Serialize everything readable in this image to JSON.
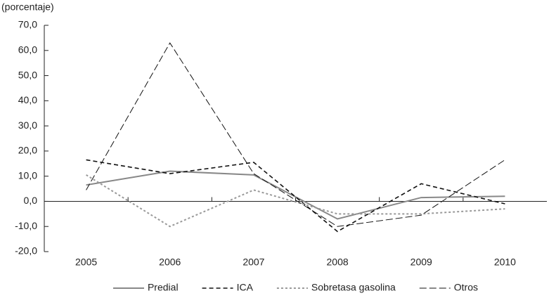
{
  "chart_data": {
    "type": "line",
    "y_label": "(porcentaje)",
    "categories": [
      "2005",
      "2006",
      "2007",
      "2008",
      "2009",
      "2010"
    ],
    "series": [
      {
        "name": "Predial",
        "color": "#888888",
        "width": 2,
        "dash": "none",
        "values": [
          6.5,
          12,
          10.5,
          -7,
          1.5,
          2
        ]
      },
      {
        "name": "ICA",
        "color": "#111111",
        "width": 1.6,
        "dash": "6,4",
        "values": [
          16.5,
          11,
          15.5,
          -12,
          7,
          -1
        ]
      },
      {
        "name": "Sobretasa gasolina",
        "color": "#999999",
        "width": 2,
        "dash": "3,3",
        "values": [
          10.5,
          -10,
          4.5,
          -5,
          -5,
          -3
        ]
      },
      {
        "name": "Otros",
        "color": "#111111",
        "width": 1,
        "dash": "10,4",
        "values": [
          4.5,
          63,
          11,
          -10,
          -5.5,
          16.5
        ]
      }
    ],
    "ylim": [
      -20,
      70
    ],
    "yticks": [
      {
        "value": -20,
        "label": "-20,0"
      },
      {
        "value": -10,
        "label": "-10,0"
      },
      {
        "value": 0,
        "label": "0,0"
      },
      {
        "value": 10,
        "label": "10,0"
      },
      {
        "value": 20,
        "label": "20,0"
      },
      {
        "value": 30,
        "label": "30,0"
      },
      {
        "value": 40,
        "label": "40,0"
      },
      {
        "value": 50,
        "label": "50,0"
      },
      {
        "value": 60,
        "label": "60,0"
      },
      {
        "value": 70,
        "label": "70,0"
      }
    ],
    "grid": false
  }
}
